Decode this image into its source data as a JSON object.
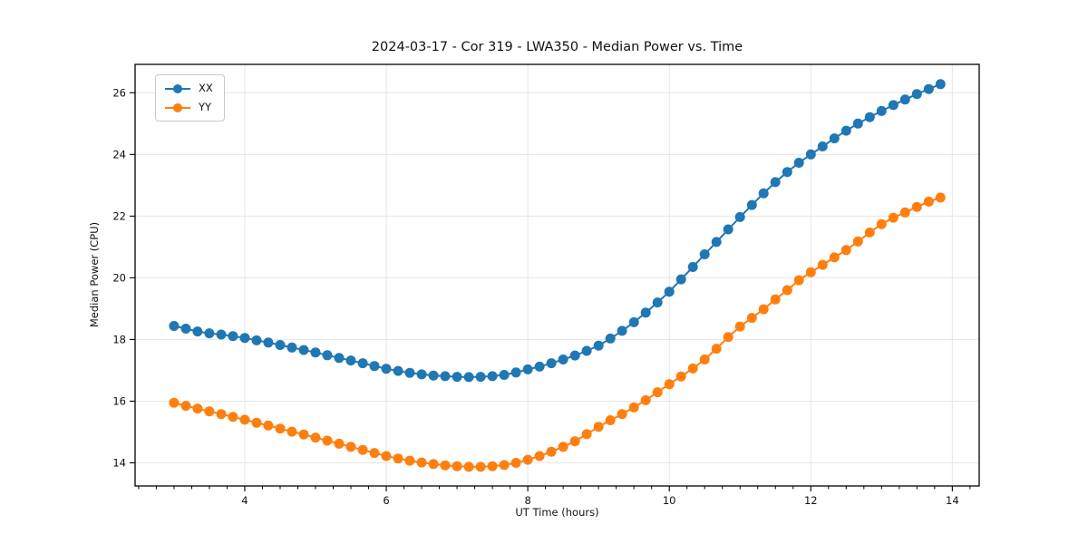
{
  "chart_data": {
    "type": "line",
    "title": "2024-03-17 - Cor 319 - LWA350 - Median Power vs. Time",
    "xlabel": "UT Time (hours)",
    "ylabel": "Median Power (CPU)",
    "xlim": [
      2.45,
      14.38
    ],
    "ylim": [
      13.25,
      26.92
    ],
    "x_ticks": [
      4,
      6,
      8,
      10,
      12,
      14
    ],
    "y_ticks": [
      14,
      16,
      18,
      20,
      22,
      24,
      26
    ],
    "x_minor_tick_step": 0.25,
    "grid": true,
    "grid_color": "#e6e6e6",
    "legend_position": "upper left",
    "marker": "o",
    "x": [
      3.0,
      3.167,
      3.333,
      3.5,
      3.667,
      3.833,
      4.0,
      4.167,
      4.333,
      4.5,
      4.667,
      4.833,
      5.0,
      5.167,
      5.333,
      5.5,
      5.667,
      5.833,
      6.0,
      6.167,
      6.333,
      6.5,
      6.667,
      6.833,
      7.0,
      7.167,
      7.333,
      7.5,
      7.667,
      7.833,
      8.0,
      8.167,
      8.333,
      8.5,
      8.667,
      8.833,
      9.0,
      9.167,
      9.333,
      9.5,
      9.667,
      9.833,
      10.0,
      10.167,
      10.333,
      10.5,
      10.667,
      10.833,
      11.0,
      11.167,
      11.333,
      11.5,
      11.667,
      11.833,
      12.0,
      12.167,
      12.333,
      12.5,
      12.667,
      12.833,
      13.0,
      13.167,
      13.333,
      13.5,
      13.667,
      13.833
    ],
    "series": [
      {
        "name": "XX",
        "color": "#1f77b4",
        "values": [
          18.44,
          18.35,
          18.26,
          18.2,
          18.16,
          18.11,
          18.05,
          17.97,
          17.9,
          17.82,
          17.74,
          17.66,
          17.58,
          17.49,
          17.4,
          17.32,
          17.23,
          17.14,
          17.05,
          16.98,
          16.92,
          16.87,
          16.83,
          16.81,
          16.79,
          16.78,
          16.79,
          16.81,
          16.85,
          16.93,
          17.03,
          17.12,
          17.23,
          17.35,
          17.48,
          17.63,
          17.8,
          18.03,
          18.28,
          18.56,
          18.87,
          19.2,
          19.55,
          19.95,
          20.35,
          20.76,
          21.16,
          21.57,
          21.97,
          22.36,
          22.74,
          23.1,
          23.43,
          23.73,
          24.0,
          24.26,
          24.52,
          24.77,
          25.0,
          25.21,
          25.41,
          25.6,
          25.78,
          25.96,
          26.12,
          26.28
        ]
      },
      {
        "name": "YY",
        "color": "#ff7f0e",
        "values": [
          15.95,
          15.85,
          15.76,
          15.67,
          15.58,
          15.49,
          15.4,
          15.3,
          15.21,
          15.11,
          15.01,
          14.92,
          14.82,
          14.72,
          14.62,
          14.52,
          14.42,
          14.32,
          14.22,
          14.14,
          14.07,
          14.01,
          13.96,
          13.92,
          13.89,
          13.87,
          13.87,
          13.89,
          13.93,
          14.0,
          14.1,
          14.22,
          14.36,
          14.52,
          14.7,
          14.93,
          15.17,
          15.38,
          15.58,
          15.8,
          16.03,
          16.29,
          16.55,
          16.8,
          17.06,
          17.35,
          17.7,
          18.08,
          18.42,
          18.7,
          18.98,
          19.3,
          19.6,
          19.92,
          20.18,
          20.42,
          20.66,
          20.9,
          21.18,
          21.47,
          21.74,
          21.95,
          22.12,
          22.3,
          22.47,
          22.6
        ]
      }
    ]
  }
}
